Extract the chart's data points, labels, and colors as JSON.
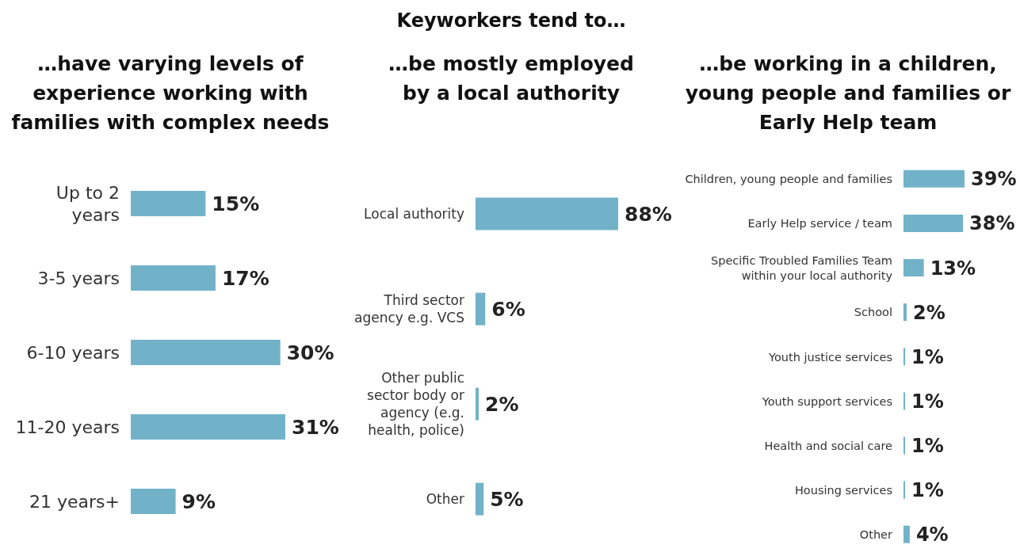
{
  "chart_data": [
    {
      "type": "bar",
      "orientation": "horizontal",
      "title": "…have varying levels of experience working with families with complex needs",
      "categories": [
        "Up to 2 years",
        "3-5 years",
        "6-10 years",
        "11-20 years",
        "21 years+"
      ],
      "values": [
        15,
        17,
        30,
        31,
        9
      ],
      "value_labels": [
        "15%",
        "17%",
        "30%",
        "31%",
        "9%"
      ],
      "color": "#72b2c9",
      "grid": false,
      "legend": false
    },
    {
      "type": "bar",
      "orientation": "horizontal",
      "title": "Keyworkers tend to…",
      "subtitle": "…be mostly employed by a local authority",
      "categories": [
        "Local authority",
        "Third sector agency e.g. VCS",
        "Other public sector body or agency (e.g. health, police)",
        "Other"
      ],
      "values": [
        88,
        6,
        2,
        5
      ],
      "value_labels": [
        "88%",
        "6%",
        "2%",
        "5%"
      ],
      "color": "#72b2c9",
      "grid": false,
      "legend": false
    },
    {
      "type": "bar",
      "orientation": "horizontal",
      "title": "…be working in a children, young people and families or Early Help team",
      "categories": [
        "Children, young people and families",
        "Early Help service / team",
        "Specific Troubled Families Team within your local authority",
        "School",
        "Youth justice services",
        "Youth support services",
        "Health and social care",
        "Housing services",
        "Other"
      ],
      "values": [
        39,
        38,
        13,
        2,
        1,
        1,
        1,
        1,
        4
      ],
      "value_labels": [
        "39%",
        "38%",
        "13%",
        "2%",
        "1%",
        "1%",
        "1%",
        "1%",
        "4%"
      ],
      "color": "#72b2c9",
      "grid": false,
      "legend": false
    }
  ]
}
